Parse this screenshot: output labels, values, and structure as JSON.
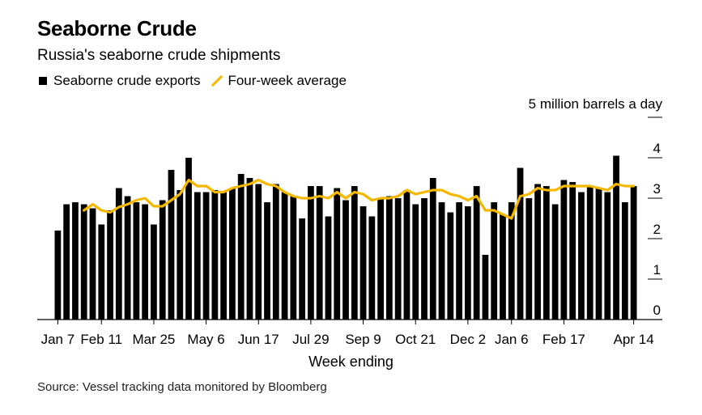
{
  "chart_data": {
    "type": "bar",
    "title": "Seaborne Crude",
    "subtitle": "Russia's seaborne crude shipments",
    "legend": [
      {
        "label": "Seaborne crude exports",
        "kind": "bar",
        "color": "#000000"
      },
      {
        "label": "Four-week average",
        "kind": "line",
        "color": "#f5b800"
      }
    ],
    "unit_label": "5 million barrels a day",
    "xlabel": "Week ending",
    "source": "Source: Vessel tracking data monitored by Bloomberg",
    "x_tick_labels": [
      "Jan 7",
      "Feb 11",
      "Mar 25",
      "May 6",
      "Jun 17",
      "Jul 29",
      "Sep 9",
      "Oct 21",
      "Dec 2",
      "Jan 6",
      "Feb 17",
      "Apr 14"
    ],
    "x_tick_indices": [
      0,
      5,
      11,
      17,
      23,
      29,
      35,
      41,
      47,
      52,
      58,
      66
    ],
    "y_ticks": [
      0,
      1,
      2,
      3,
      4
    ],
    "ylim": [
      0,
      5
    ],
    "series": [
      {
        "name": "Seaborne crude exports",
        "type": "bar",
        "values": [
          2.2,
          2.85,
          2.9,
          2.85,
          2.75,
          2.35,
          2.7,
          3.25,
          3.05,
          2.9,
          2.85,
          2.35,
          2.95,
          3.7,
          3.2,
          4.0,
          3.15,
          3.15,
          3.2,
          3.15,
          3.25,
          3.6,
          3.5,
          3.35,
          2.9,
          3.35,
          3.15,
          3.05,
          2.5,
          3.3,
          3.3,
          2.55,
          3.25,
          2.95,
          3.3,
          2.8,
          2.55,
          3.0,
          3.05,
          3.0,
          3.2,
          2.85,
          3.0,
          3.5,
          2.9,
          2.65,
          2.9,
          2.8,
          3.3,
          1.6,
          2.9,
          2.6,
          2.9,
          3.75,
          3.0,
          3.35,
          3.3,
          2.85,
          3.45,
          3.4,
          3.15,
          3.3,
          3.25,
          3.15,
          4.05,
          2.9,
          3.3
        ],
        "color": "#000000"
      },
      {
        "name": "Four-week average",
        "type": "line",
        "values": [
          null,
          null,
          null,
          2.7,
          2.85,
          2.7,
          2.65,
          2.78,
          2.85,
          2.95,
          3.0,
          2.8,
          2.8,
          2.95,
          3.1,
          3.45,
          3.3,
          3.3,
          3.15,
          3.15,
          3.25,
          3.3,
          3.35,
          3.45,
          3.35,
          3.3,
          3.15,
          3.05,
          3.0,
          3.0,
          3.05,
          3.0,
          3.15,
          3.0,
          3.15,
          3.1,
          2.95,
          3.0,
          3.0,
          3.05,
          3.2,
          3.1,
          3.15,
          3.2,
          3.2,
          3.1,
          3.05,
          2.95,
          3.05,
          2.7,
          2.7,
          2.6,
          2.5,
          3.05,
          3.1,
          3.25,
          3.2,
          3.2,
          3.3,
          3.3,
          3.3,
          3.3,
          3.25,
          3.2,
          3.35,
          3.3,
          3.3
        ],
        "color": "#f5b800"
      }
    ]
  }
}
